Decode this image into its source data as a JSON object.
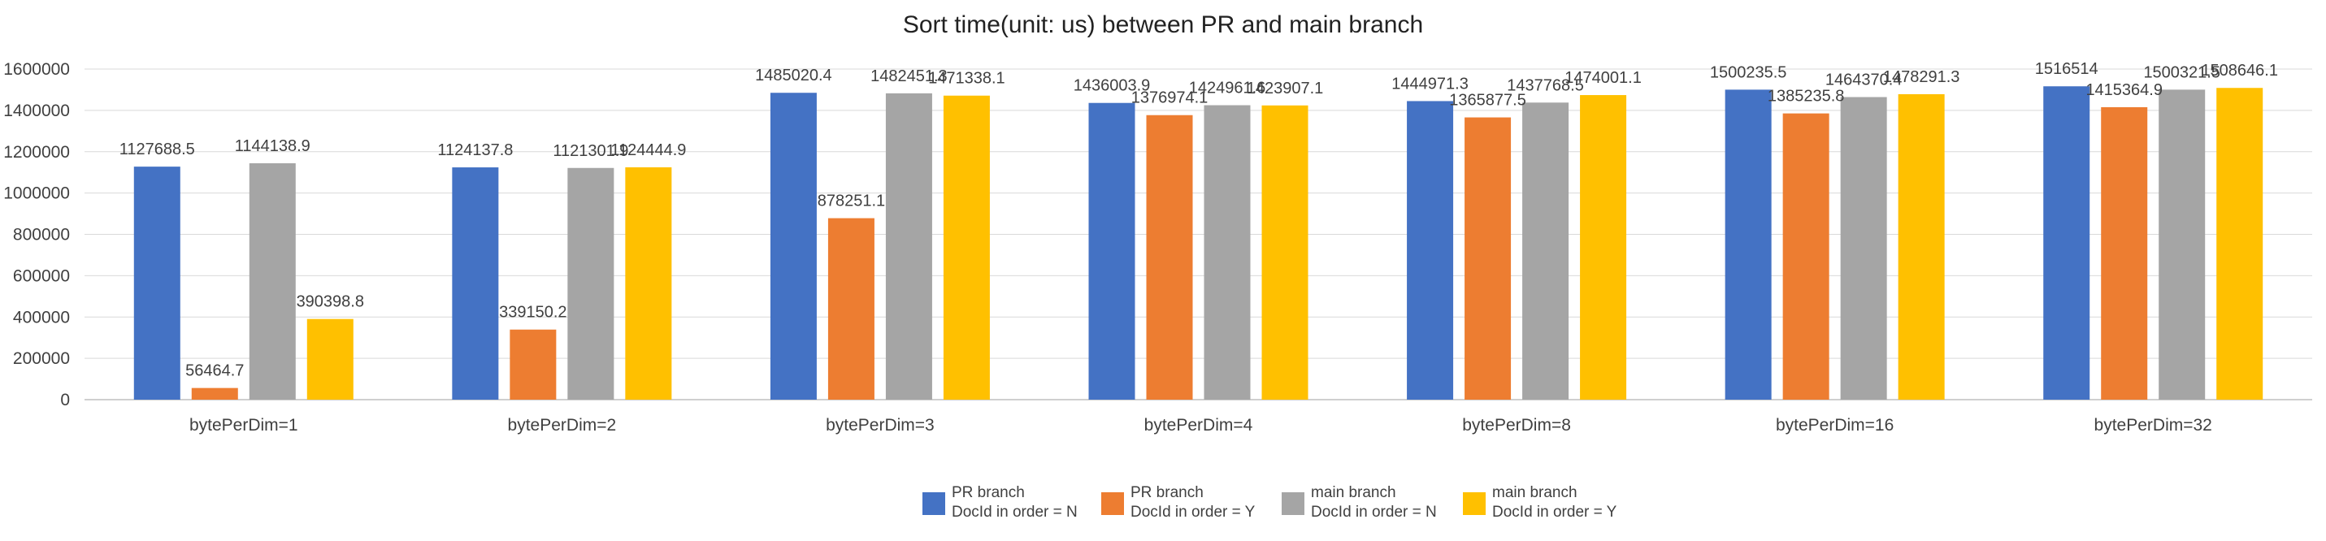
{
  "chart_data": {
    "type": "bar",
    "title": "Sort time(unit: us) between PR and main branch",
    "xlabel": "",
    "ylabel": "",
    "ylim": [
      0,
      1600000
    ],
    "yticks": [
      0,
      200000,
      400000,
      600000,
      800000,
      1000000,
      1200000,
      1400000,
      1600000
    ],
    "grid": true,
    "legend_position": "bottom",
    "categories": [
      "bytePerDim=1",
      "bytePerDim=2",
      "bytePerDim=3",
      "bytePerDim=4",
      "bytePerDim=8",
      "bytePerDim=16",
      "bytePerDim=32"
    ],
    "series": [
      {
        "name": "PR branch\nDocId in order = N",
        "color": "#4472C4",
        "values": [
          1127688.5,
          1124137.8,
          1485020.4,
          1436003.9,
          1444971.3,
          1500235.5,
          1516514
        ],
        "labels": [
          "1127688.5",
          "1124137.8",
          "1485020.4",
          "1436003.9",
          "1444971.3",
          "1500235.5",
          "1516514"
        ]
      },
      {
        "name": "PR branch\nDocId in order = Y",
        "color": "#ED7D31",
        "values": [
          56464.7,
          339150.2,
          878251.1,
          1376974.1,
          1365877.5,
          1385235.8,
          1415364.9
        ],
        "labels": [
          "56464.7",
          "339150.2",
          "878251.1",
          "1376974.1",
          "1365877.5",
          "1385235.8",
          "1415364.9"
        ]
      },
      {
        "name": "main branch\nDocId in order = N",
        "color": "#A5A5A5",
        "values": [
          1144138.9,
          1121301.9,
          1482451.3,
          1424961.6,
          1437768.5,
          1464370.4,
          1500321.5
        ],
        "labels": [
          "1144138.9",
          "1121301.9",
          "1482451.3",
          "1424961.6",
          "1437768.5",
          "1464370.4",
          "1500321.5"
        ]
      },
      {
        "name": "main branch\nDocId in order = Y",
        "color": "#FFC000",
        "values": [
          390398.8,
          1124444.9,
          1471338.1,
          1423907.1,
          1474001.1,
          1478291.3,
          1508646.1
        ],
        "labels": [
          "390398.8",
          "1124444.9",
          "1471338.1",
          "1423907.1",
          "1474001.1",
          "1478291.3",
          "1508646.1"
        ]
      }
    ]
  }
}
